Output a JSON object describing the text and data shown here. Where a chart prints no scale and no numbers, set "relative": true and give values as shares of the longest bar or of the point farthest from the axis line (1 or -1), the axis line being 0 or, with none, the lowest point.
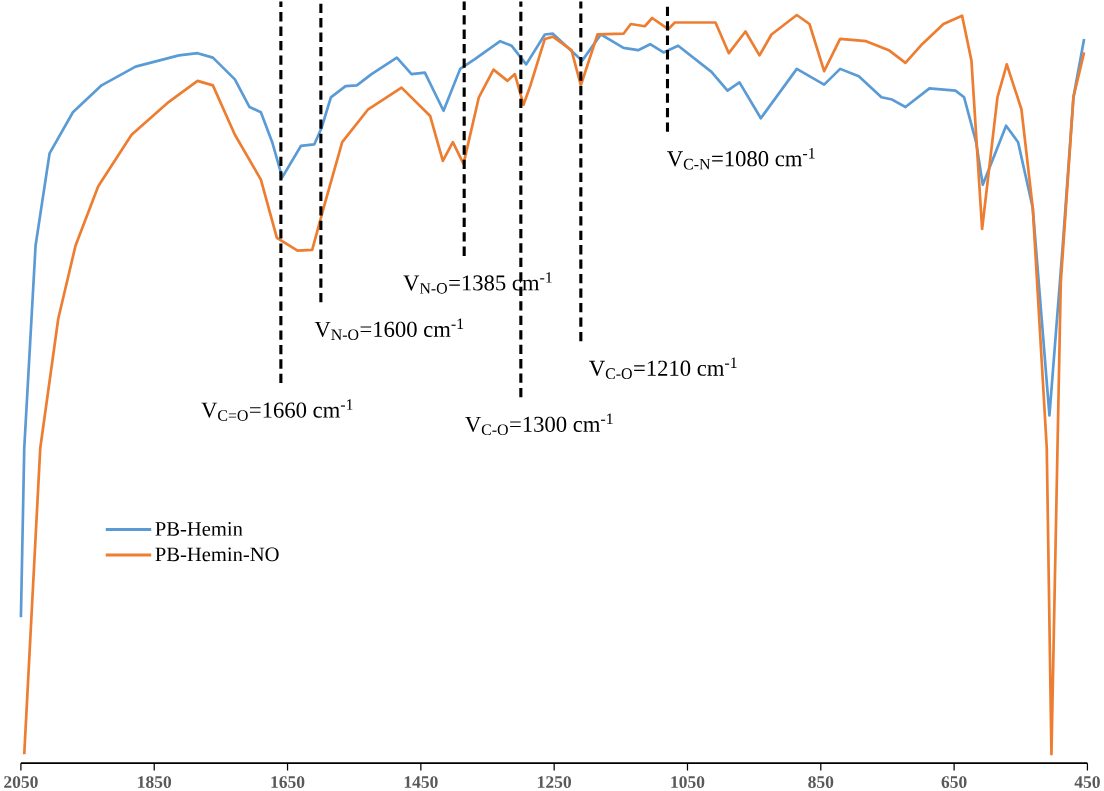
{
  "chart_data": {
    "type": "line",
    "relative": true,
    "xlim": [
      2050,
      450
    ],
    "xticks": [
      2050,
      1850,
      1650,
      1450,
      1250,
      1050,
      850,
      650,
      450
    ],
    "legend": "left",
    "line_style": "solid",
    "series": [
      {
        "name": "PB-Hemin",
        "color": "#5b9bd5",
        "x": [
          2050,
          2045,
          2028,
          2007,
          1972,
          1929,
          1878,
          1813,
          1785,
          1762,
          1729,
          1707,
          1690,
          1673,
          1658,
          1630,
          1610,
          1599,
          1585,
          1563,
          1546,
          1524,
          1486,
          1464,
          1444,
          1416,
          1391,
          1369,
          1331,
          1314,
          1292,
          1264,
          1252,
          1208,
          1180,
          1146,
          1124,
          1106,
          1086,
          1064,
          1014,
          990,
          972,
          940,
          886,
          845,
          821,
          793,
          759,
          743,
          723,
          687,
          648,
          635,
          617,
          607,
          572,
          554,
          532,
          507,
          487,
          471,
          455
        ],
        "values": [
          0.195,
          0.421,
          0.692,
          0.815,
          0.87,
          0.906,
          0.931,
          0.946,
          0.949,
          0.943,
          0.914,
          0.877,
          0.87,
          0.83,
          0.783,
          0.825,
          0.827,
          0.849,
          0.89,
          0.905,
          0.906,
          0.921,
          0.943,
          0.921,
          0.923,
          0.872,
          0.928,
          0.941,
          0.965,
          0.959,
          0.934,
          0.974,
          0.975,
          0.939,
          0.974,
          0.956,
          0.953,
          0.961,
          0.95,
          0.959,
          0.924,
          0.899,
          0.91,
          0.862,
          0.928,
          0.907,
          0.928,
          0.918,
          0.89,
          0.887,
          0.877,
          0.902,
          0.899,
          0.89,
          0.83,
          0.773,
          0.852,
          0.83,
          0.742,
          0.465,
          0.692,
          0.89,
          0.968
        ]
      },
      {
        "name": "PB-Hemin-NO",
        "color": "#ed7d31",
        "x": [
          2045,
          2021,
          1994,
          1968,
          1934,
          1884,
          1828,
          1785,
          1762,
          1729,
          1690,
          1666,
          1635,
          1613,
          1596,
          1568,
          1529,
          1479,
          1436,
          1417,
          1402,
          1386,
          1363,
          1341,
          1320,
          1309,
          1296,
          1286,
          1264,
          1252,
          1224,
          1210,
          1185,
          1146,
          1135,
          1114,
          1103,
          1079,
          1069,
          1008,
          988,
          963,
          942,
          924,
          886,
          867,
          845,
          821,
          782,
          748,
          723,
          698,
          666,
          638,
          624,
          608,
          585,
          571,
          549,
          532,
          511,
          504,
          490,
          471,
          455
        ],
        "values": [
          0.012,
          0.421,
          0.594,
          0.692,
          0.771,
          0.84,
          0.884,
          0.912,
          0.906,
          0.84,
          0.78,
          0.702,
          0.685,
          0.686,
          0.742,
          0.83,
          0.874,
          0.903,
          0.865,
          0.805,
          0.83,
          0.801,
          0.89,
          0.927,
          0.912,
          0.921,
          0.88,
          0.905,
          0.968,
          0.971,
          0.953,
          0.906,
          0.974,
          0.975,
          0.988,
          0.985,
          0.996,
          0.981,
          0.99,
          0.99,
          0.949,
          0.978,
          0.946,
          0.974,
          1.0,
          0.988,
          0.925,
          0.968,
          0.965,
          0.953,
          0.936,
          0.961,
          0.988,
          0.999,
          0.939,
          0.714,
          0.89,
          0.934,
          0.874,
          0.742,
          0.421,
          0.012,
          0.642,
          0.89,
          0.95
        ]
      }
    ],
    "ref_lines": [
      {
        "axis": "x",
        "value": 1660,
        "label": "V$_{C=O}$=1660 cm$^{-1}$",
        "color": "#000000",
        "line_style": "dashed"
      },
      {
        "axis": "x",
        "value": 1600,
        "label": "V$_{N-O}$=1600 cm$^{-1}$",
        "color": "#000000",
        "line_style": "dashed"
      },
      {
        "axis": "x",
        "value": 1385,
        "label": "V$_{N-O}$=1385 cm$^{-1}$",
        "color": "#000000",
        "line_style": "dashed"
      },
      {
        "axis": "x",
        "value": 1300,
        "label": "V$_{C-O}$=1300 cm$^{-1}$",
        "color": "#000000",
        "line_style": "dashed"
      },
      {
        "axis": "x",
        "value": 1210,
        "label": "V$_{C-O}$=1210 cm$^{-1}$",
        "color": "#000000",
        "line_style": "dashed"
      },
      {
        "axis": "x",
        "value": 1080,
        "label": "V$_{C-N}$=1080 cm$^{-1}$",
        "color": "#000000",
        "line_style": "dashed"
      }
    ]
  }
}
